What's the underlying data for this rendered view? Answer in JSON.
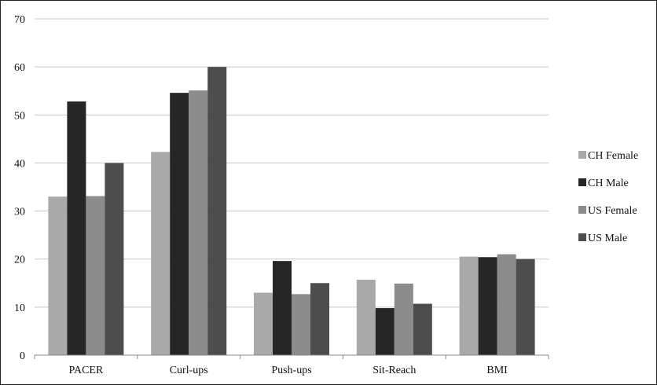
{
  "chart_data": {
    "type": "bar",
    "categories": [
      "PACER",
      "Curl-ups",
      "Push-ups",
      "Sit-Reach",
      "BMI"
    ],
    "series": [
      {
        "name": "CH Female",
        "color": "#a9a9a9",
        "values": [
          33.0,
          42.3,
          13.0,
          15.7,
          20.5
        ]
      },
      {
        "name": "CH Male",
        "color": "#262626",
        "values": [
          52.8,
          54.6,
          19.6,
          9.8,
          20.4
        ]
      },
      {
        "name": "US Female",
        "color": "#8c8c8c",
        "values": [
          33.1,
          55.1,
          12.7,
          14.9,
          21.0
        ]
      },
      {
        "name": "US Male",
        "color": "#4d4d4d",
        "values": [
          40.0,
          60.0,
          15.0,
          10.7,
          20.0
        ]
      }
    ],
    "yticks": [
      "0",
      "10",
      "20",
      "30",
      "40",
      "50",
      "60",
      "70"
    ],
    "ylim": [
      0,
      70
    ],
    "title": "",
    "xlabel": "",
    "ylabel": "",
    "grid": true,
    "legend_position": "right"
  }
}
